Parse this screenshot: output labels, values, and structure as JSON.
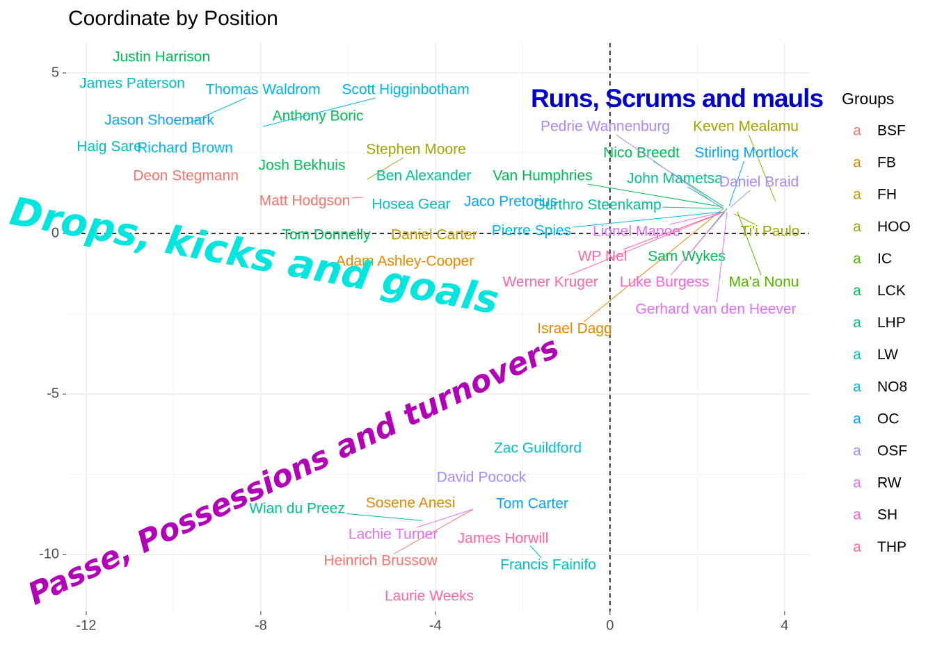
{
  "chart_data": {
    "type": "scatter",
    "title": "Coordinate by Position",
    "legend_title": "Groups",
    "legend_key_glyph": "a",
    "xlim": [
      -12.46,
      4.56
    ],
    "ylim": [
      -11.77,
      5.93
    ],
    "xticks": [
      -12,
      -8,
      -4,
      0,
      4
    ],
    "yticks": [
      5,
      0,
      -5,
      -10
    ],
    "grid": true,
    "reference_lines": {
      "x": 0,
      "y": 0
    },
    "annotations": [
      {
        "text": "Runs, Scrums and mauls",
        "color": "#0000cd"
      },
      {
        "text": "Drops, kicks and goals",
        "color": "#00e5dd"
      },
      {
        "text": "Passe, Possessions and turnovers",
        "color": "#b200b8"
      }
    ],
    "series": [
      {
        "name": "BSF",
        "color": "#F8766D",
        "labels": [
          "Deon Stegmann",
          "Matt Hodgson",
          "Heinrich Brussow"
        ],
        "x": [
          -9.72,
          -5.66,
          -3.14
        ],
        "values": [
          1.77,
          1.13,
          -8.59
        ]
      },
      {
        "name": "FB",
        "color": "#E38900",
        "labels": [
          "Adam Ashley-Cooper",
          "Israel Dagg",
          "Sosene Anesi"
        ],
        "x": [
          -4.7,
          2.6,
          -4.57
        ],
        "values": [
          -0.89,
          0.78,
          -8.42
        ]
      },
      {
        "name": "FH",
        "color": "#C49A00",
        "labels": [
          "Daniel Carter"
        ],
        "x": [
          -4.03
        ],
        "values": [
          -0.06
        ]
      },
      {
        "name": "HOO",
        "color": "#99A800",
        "labels": [
          "Stephen Moore",
          "Keven Mealamu",
          "Ti'i Paulo"
        ],
        "x": [
          -5.56,
          3.79,
          2.84
        ],
        "values": [
          1.69,
          1.0,
          0.61
        ]
      },
      {
        "name": "IC",
        "color": "#53B400",
        "labels": [
          "Ma'a Nonu"
        ],
        "x": [
          2.92
        ],
        "values": [
          0.67
        ]
      },
      {
        "name": "LCK",
        "color": "#00BC56",
        "labels": [
          "Justin Harrison",
          "Anthony Boric",
          "Josh Bekhuis",
          "Tom Donnelly",
          "Nico Breedt",
          "Van Humphries",
          "Sam Wykes"
        ],
        "x": [
          -10.28,
          -6.69,
          -7.06,
          -6.5,
          2.6,
          2.52,
          2.68
        ],
        "values": [
          5.48,
          3.64,
          2.1,
          -0.06,
          0.84,
          0.84,
          0.78
        ]
      },
      {
        "name": "LHP",
        "color": "#00C094",
        "labels": [
          "Ben Alexander",
          "John Mametsa",
          "Gurthro Steenkamp",
          "Wian du Preez"
        ],
        "x": [
          -4.27,
          2.6,
          2.52,
          -4.3
        ],
        "values": [
          1.77,
          0.78,
          0.78,
          -8.94
        ]
      },
      {
        "name": "LW",
        "color": "#00BFC4",
        "labels": [
          "James Paterson",
          "Haig Sare",
          "Hosea Gear",
          "Zac Guildford",
          "Francis Fainifo"
        ],
        "x": [
          -10.95,
          -11.47,
          -4.56,
          -1.66,
          -1.83
        ],
        "values": [
          4.65,
          2.68,
          0.89,
          -6.71,
          -9.72
        ]
      },
      {
        "name": "NO8",
        "color": "#00B6EB",
        "labels": [
          "Thomas Waldrom",
          "Scott Higginbotham",
          "Richard Brown",
          "Pierre Spies"
        ],
        "x": [
          -9.74,
          -7.95,
          -9.74,
          2.55
        ],
        "values": [
          3.38,
          3.33,
          2.64,
          0.67
        ]
      },
      {
        "name": "OC",
        "color": "#06A4FF",
        "labels": [
          "Jason Shoemark",
          "Jaco Pretorius",
          "Stirling Mortlock",
          "Tom Carter"
        ],
        "x": [
          -10.33,
          -2.28,
          2.73,
          -1.78
        ],
        "values": [
          3.51,
          0.97,
          0.87,
          -8.44
        ]
      },
      {
        "name": "OSF",
        "color": "#A58AFF",
        "labels": [
          "Pedrie Wannenburg",
          "Daniel Braid",
          "David Pocock"
        ],
        "x": [
          2.57,
          2.76,
          -2.95
        ],
        "values": [
          0.78,
          0.82,
          -7.62
        ]
      },
      {
        "name": "RW",
        "color": "#DF70F8",
        "labels": [
          "Lionel Mapoe",
          "Gerhard van den Heever",
          "Lachie Turner"
        ],
        "x": [
          2.6,
          2.68,
          -3.14
        ],
        "values": [
          0.67,
          0.67,
          -8.59
        ]
      },
      {
        "name": "SH",
        "color": "#FB61D7",
        "labels": [
          "Luke Burgess"
        ],
        "x": [
          2.63
        ],
        "values": [
          0.67
        ]
      },
      {
        "name": "THP",
        "color": "#FF66A8",
        "labels": [
          "WP Nel",
          "Werner Kruger",
          "James Horwill",
          "Laurie Weeks"
        ],
        "x": [
          2.6,
          2.6,
          -2.45,
          -4.14
        ],
        "values": [
          0.67,
          0.67,
          -9.52,
          -11.32
        ]
      }
    ]
  }
}
